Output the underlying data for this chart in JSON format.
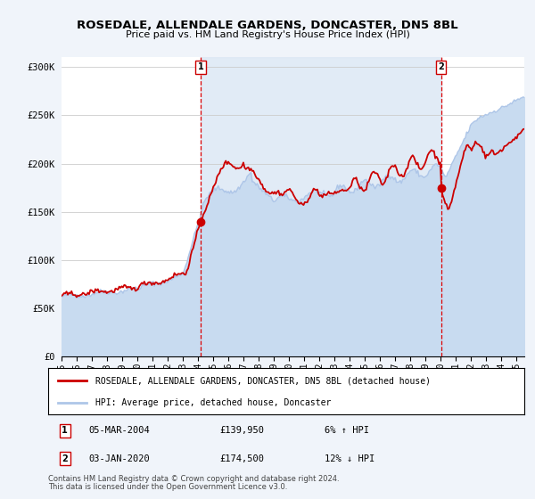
{
  "title1": "ROSEDALE, ALLENDALE GARDENS, DONCASTER, DN5 8BL",
  "title2": "Price paid vs. HM Land Registry's House Price Index (HPI)",
  "ylim": [
    0,
    310000
  ],
  "xlim_start": 1995.0,
  "xlim_end": 2025.5,
  "yticks": [
    0,
    50000,
    100000,
    150000,
    200000,
    250000,
    300000
  ],
  "ytick_labels": [
    "£0",
    "£50K",
    "£100K",
    "£150K",
    "£200K",
    "£250K",
    "£300K"
  ],
  "xtick_years": [
    1995,
    1996,
    1997,
    1998,
    1999,
    2000,
    2001,
    2002,
    2003,
    2004,
    2005,
    2006,
    2007,
    2008,
    2009,
    2010,
    2011,
    2012,
    2013,
    2014,
    2015,
    2016,
    2017,
    2018,
    2019,
    2020,
    2021,
    2022,
    2023,
    2024,
    2025
  ],
  "hpi_color": "#aec6e8",
  "hpi_fill_color": "#c8dbf0",
  "price_color": "#cc0000",
  "marker1_date": 2004.17,
  "marker1_price": 139950,
  "marker1_label": "1",
  "marker1_date_str": "05-MAR-2004",
  "marker1_price_str": "£139,950",
  "marker1_hpi_str": "6% ↑ HPI",
  "marker2_date": 2020.01,
  "marker2_price": 174500,
  "marker2_label": "2",
  "marker2_date_str": "03-JAN-2020",
  "marker2_price_str": "£174,500",
  "marker2_hpi_str": "12% ↓ HPI",
  "legend_line1": "ROSEDALE, ALLENDALE GARDENS, DONCASTER, DN5 8BL (detached house)",
  "legend_line2": "HPI: Average price, detached house, Doncaster",
  "footnote1": "Contains HM Land Registry data © Crown copyright and database right 2024.",
  "footnote2": "This data is licensed under the Open Government Licence v3.0.",
  "bg_color": "#f0f4fa",
  "plot_bg": "#ffffff",
  "vline_color": "#dd0000",
  "shade_color": "#dce8f5"
}
